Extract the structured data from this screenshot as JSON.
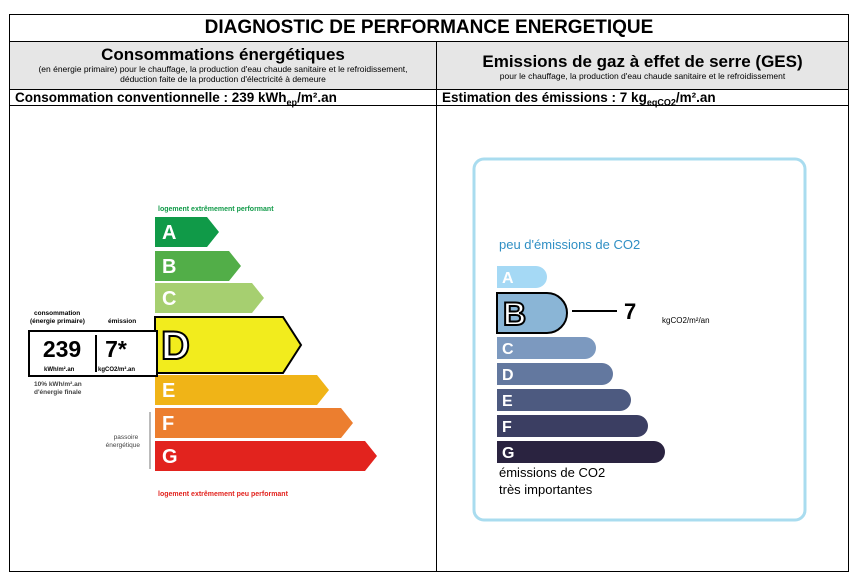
{
  "title": "DIAGNOSTIC DE PERFORMANCE ENERGETIQUE",
  "left": {
    "heading": "Consommations énergétiques",
    "subheading": "(en énergie primaire) pour le chauffage, la production d'eau chaude sanitaire et le refroidissement, déduction faite de la production d'électricité à demeure",
    "consumption_label": "Consommation conventionnelle : 239 kWh",
    "consumption_sub": "ep",
    "consumption_unit": "/m².an",
    "top_label": "logement extrêmement performant",
    "bottom_label": "logement extrêmement peu performant",
    "classes": [
      {
        "letter": "A",
        "color": "#109a48"
      },
      {
        "letter": "B",
        "color": "#52ae48"
      },
      {
        "letter": "C",
        "color": "#a6cf70"
      },
      {
        "letter": "D",
        "color": "#f2ec1d"
      },
      {
        "letter": "E",
        "color": "#f0b417"
      },
      {
        "letter": "F",
        "color": "#ec7e2f"
      },
      {
        "letter": "G",
        "color": "#e2231e"
      }
    ],
    "current_class": "D",
    "box_label_consumption": "consommation (énergie primaire)",
    "box_label_emission": "émission",
    "consumption_value": "239",
    "emission_value": "7*",
    "consumption_value_unit": "kWh/m².an",
    "emission_value_unit": "kgCO2/m².an",
    "footnote": "10% kWh/m².an d'énergie finale",
    "side_label": "passoire énergétique"
  },
  "right": {
    "heading": "Emissions de gaz à effet de serre (GES)",
    "subheading": "pour le chauffage, la production d'eau chaude sanitaire et le refroidissement",
    "estimation_label": "Estimation des émissions : 7 kg",
    "estimation_sub": "eqCO2",
    "estimation_unit": "/m².an",
    "top_label": "peu d'émissions de CO2",
    "bottom_label_1": "émissions de CO2",
    "bottom_label_2": "très importantes",
    "classes": [
      {
        "letter": "A",
        "color": "#a5d9f5"
      },
      {
        "letter": "B",
        "color": "#8ab5d6"
      },
      {
        "letter": "C",
        "color": "#7c99bf"
      },
      {
        "letter": "D",
        "color": "#63789f"
      },
      {
        "letter": "E",
        "color": "#4d5a80"
      },
      {
        "letter": "F",
        "color": "#3b3e62"
      },
      {
        "letter": "G",
        "color": "#2a2340"
      }
    ],
    "current_class": "B",
    "value": "7",
    "value_unit": "kgCO2/m²/an"
  }
}
